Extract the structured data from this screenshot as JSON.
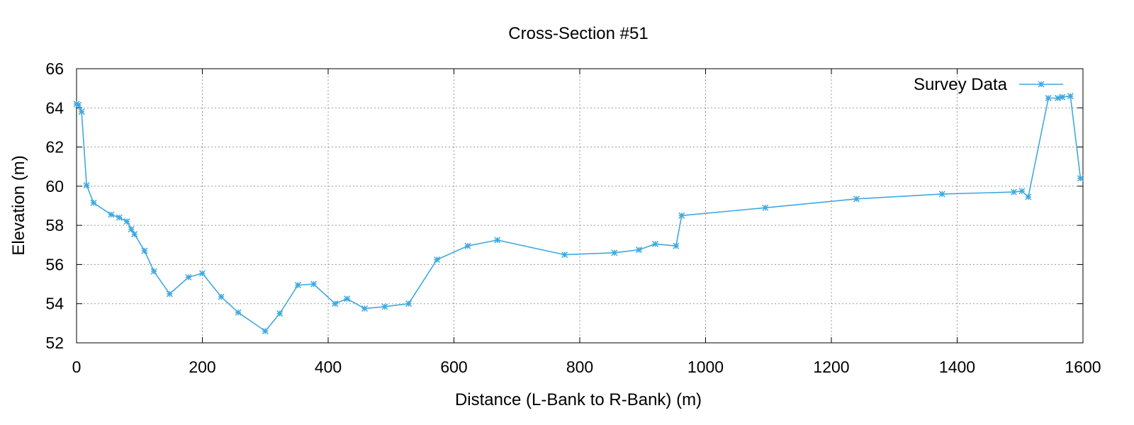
{
  "chart_data": {
    "type": "line",
    "title": "Cross-Section #51",
    "xlabel": "Distance (L-Bank to R-Bank) (m)",
    "ylabel": "Elevation (m)",
    "xlim": [
      0,
      1600
    ],
    "ylim": [
      52,
      66
    ],
    "xticks": [
      0,
      200,
      400,
      600,
      800,
      1000,
      1200,
      1400,
      1600
    ],
    "yticks": [
      52,
      54,
      56,
      58,
      60,
      62,
      64,
      66
    ],
    "grid": true,
    "legend_position": "top-right",
    "series": [
      {
        "name": "Survey Data",
        "color": "#3fa9e0",
        "marker": "asterisk",
        "x": [
          0,
          3,
          8,
          16,
          27,
          55,
          68,
          80,
          87,
          92,
          108,
          123,
          148,
          178,
          200,
          230,
          257,
          300,
          323,
          352,
          377,
          411,
          430,
          458,
          490,
          528,
          573,
          622,
          669,
          776,
          855,
          894,
          920,
          953,
          962,
          1095,
          1240,
          1376,
          1490,
          1503,
          1513,
          1545,
          1560,
          1567,
          1580,
          1596
        ],
        "y": [
          64.2,
          64.15,
          63.8,
          60.05,
          59.15,
          58.55,
          58.4,
          58.2,
          57.8,
          57.55,
          56.7,
          55.65,
          54.5,
          55.35,
          55.55,
          54.35,
          53.55,
          52.6,
          53.5,
          54.95,
          55.0,
          54.0,
          54.25,
          53.75,
          53.85,
          54.0,
          56.25,
          56.95,
          57.25,
          56.5,
          56.6,
          56.75,
          57.05,
          56.95,
          58.5,
          58.9,
          59.35,
          59.6,
          59.7,
          59.75,
          59.45,
          64.5,
          64.5,
          64.55,
          64.6,
          60.4
        ]
      }
    ]
  }
}
